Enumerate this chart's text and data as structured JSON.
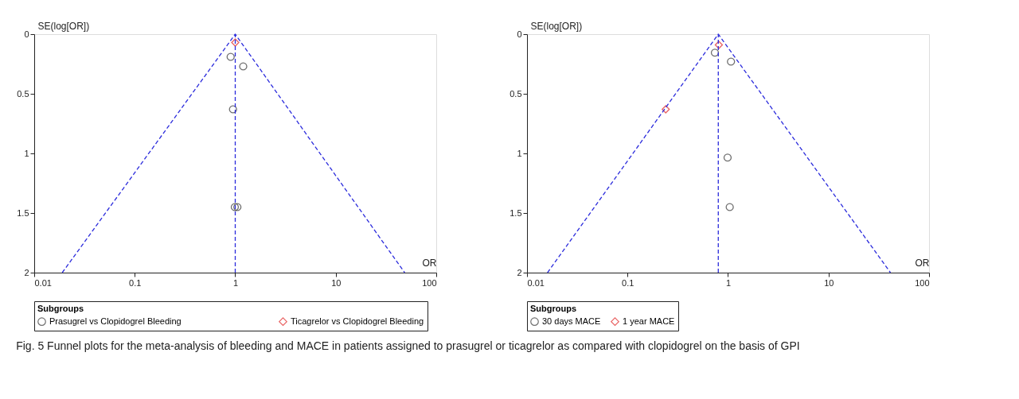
{
  "chart_data": [
    {
      "type": "scatter",
      "xlabel": "OR",
      "ylabel": "SE(log[OR])",
      "legend_title": "Subgroups",
      "log": "x",
      "grid": false,
      "legend": "bottom",
      "xlim": [
        0.01,
        100
      ],
      "xticks": [
        0.01,
        0.1,
        1,
        10,
        100
      ],
      "ylim": [
        2,
        0
      ],
      "yticks": [
        0,
        0.5,
        1,
        1.5,
        2
      ],
      "series": [
        {
          "type": "line",
          "color": "#2b2bdc",
          "line_style": "dashed",
          "x": [
            0.019,
            1,
            48.5
          ],
          "values": [
            2,
            0,
            2
          ]
        },
        {
          "name": "Prasugrel vs Clopidogrel Bleeding",
          "color": "#333333",
          "marker": "circle",
          "x": [
            0.9,
            1.2,
            0.95,
            0.99,
            1.05
          ],
          "values": [
            0.19,
            0.27,
            0.63,
            1.45,
            1.45
          ]
        },
        {
          "name": "Ticagrelor vs Clopidogrel Bleeding",
          "color": "#e02020",
          "marker": "diamond",
          "x": [
            1.0
          ],
          "values": [
            0.07
          ]
        }
      ],
      "ref_lines": [
        {
          "axis": "x",
          "value": 1,
          "color": "#2b2bdc",
          "line_style": "dashed"
        }
      ],
      "annotations": [
        "Fig. 5 Funnel plots for the meta-analysis of bleeding and MACE in patients assigned to prasugrel or ticagrelor as compared with clopidogrel on the basis of GPI"
      ]
    },
    {
      "type": "scatter",
      "xlabel": "OR",
      "ylabel": "SE(log[OR])",
      "legend_title": "Subgroups",
      "log": "x",
      "grid": false,
      "legend": "bottom",
      "xlim": [
        0.01,
        100
      ],
      "xticks": [
        0.01,
        0.1,
        1,
        10,
        100
      ],
      "ylim": [
        2,
        0
      ],
      "yticks": [
        0,
        0.5,
        1,
        1.5,
        2
      ],
      "series": [
        {
          "type": "line",
          "color": "#2b2bdc",
          "line_style": "dashed",
          "x": [
            0.016,
            0.8,
            41.3
          ],
          "values": [
            2,
            0,
            2
          ]
        },
        {
          "name": "30 days MACE",
          "color": "#333333",
          "marker": "circle",
          "x": [
            0.74,
            1.07,
            0.99,
            1.04
          ],
          "values": [
            0.155,
            0.23,
            1.035,
            1.45
          ]
        },
        {
          "name": "1 year MACE",
          "color": "#e02020",
          "marker": "diamond",
          "x": [
            0.81,
            0.24
          ],
          "values": [
            0.09,
            0.63
          ]
        }
      ],
      "ref_lines": [
        {
          "axis": "x",
          "value": 0.8,
          "color": "#2b2bdc",
          "line_style": "dashed"
        }
      ]
    }
  ]
}
